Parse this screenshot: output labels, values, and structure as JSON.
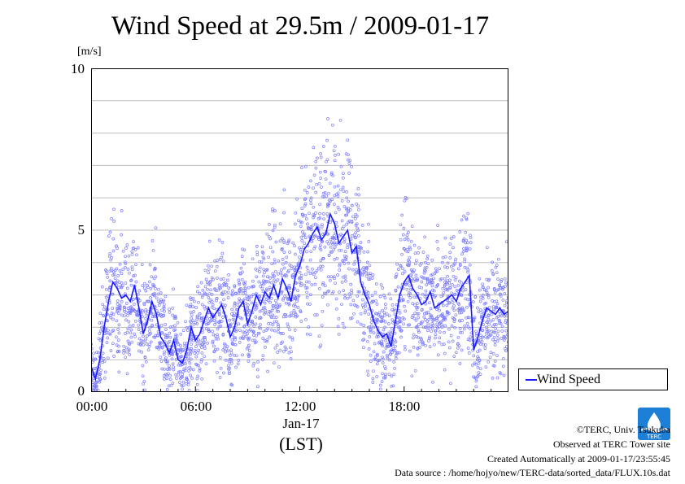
{
  "chart_data": {
    "type": "line",
    "title": "Wind Speed at 29.5m / 2009-01-17",
    "ylabel": "[m/s]",
    "xlabel": "(LST)",
    "x_date_label": "Jan-17",
    "ylim": [
      0,
      10
    ],
    "xlim_hours": [
      0,
      24
    ],
    "y_ticks": [
      "0",
      "5",
      "10"
    ],
    "x_ticks": [
      {
        "hour": 0,
        "label": "00:00"
      },
      {
        "hour": 6,
        "label": "06:00"
      },
      {
        "hour": 12,
        "label": "12:00"
      },
      {
        "hour": 18,
        "label": "18:00"
      }
    ],
    "grid": true,
    "legend_position": "bottom-right, outside plot",
    "series": [
      {
        "name": "Wind Speed",
        "color": "#1a1aff",
        "x_hours": [
          0.0,
          0.25,
          0.5,
          0.75,
          1.0,
          1.25,
          1.5,
          1.75,
          2.0,
          2.25,
          2.5,
          2.75,
          3.0,
          3.25,
          3.5,
          3.75,
          4.0,
          4.25,
          4.5,
          4.75,
          5.0,
          5.25,
          5.5,
          5.75,
          6.0,
          6.25,
          6.5,
          6.75,
          7.0,
          7.25,
          7.5,
          7.75,
          8.0,
          8.25,
          8.5,
          8.75,
          9.0,
          9.25,
          9.5,
          9.75,
          10.0,
          10.25,
          10.5,
          10.75,
          11.0,
          11.25,
          11.5,
          11.75,
          12.0,
          12.25,
          12.5,
          12.75,
          13.0,
          13.25,
          13.5,
          13.75,
          14.0,
          14.25,
          14.5,
          14.75,
          15.0,
          15.25,
          15.5,
          15.75,
          16.0,
          16.25,
          16.5,
          16.75,
          17.0,
          17.25,
          17.5,
          17.75,
          18.0,
          18.25,
          18.5,
          18.75,
          19.0,
          19.25,
          19.5,
          19.75,
          20.0,
          20.25,
          20.5,
          20.75,
          21.0,
          21.25,
          21.5,
          21.75,
          22.0,
          22.25,
          22.5,
          22.75,
          23.0,
          23.25,
          23.5,
          23.75,
          24.0
        ],
        "values": [
          0.8,
          0.4,
          1.0,
          2.0,
          2.8,
          3.4,
          3.2,
          2.9,
          3.0,
          2.8,
          3.3,
          2.6,
          1.8,
          2.2,
          2.8,
          2.4,
          1.7,
          1.5,
          1.2,
          1.6,
          1.0,
          0.9,
          1.3,
          2.0,
          1.6,
          1.8,
          2.2,
          2.6,
          2.3,
          2.5,
          2.7,
          2.3,
          1.7,
          2.0,
          2.6,
          2.8,
          2.1,
          2.5,
          3.0,
          2.7,
          3.1,
          2.9,
          3.3,
          2.9,
          3.5,
          3.2,
          2.8,
          3.6,
          3.9,
          4.4,
          4.6,
          4.9,
          5.1,
          4.7,
          4.9,
          5.5,
          5.2,
          4.6,
          4.8,
          5.0,
          4.3,
          4.5,
          3.4,
          3.0,
          2.7,
          2.2,
          1.9,
          1.7,
          1.8,
          1.4,
          2.2,
          3.0,
          3.4,
          3.6,
          3.2,
          3.0,
          2.7,
          2.8,
          3.1,
          2.6,
          2.7,
          2.8,
          2.9,
          3.0,
          2.8,
          3.2,
          3.4,
          3.6,
          1.3,
          1.7,
          2.2,
          2.6,
          2.5,
          2.4,
          2.6,
          2.4,
          2.5
        ]
      }
    ]
  },
  "legend": {
    "label": "Wind Speed"
  },
  "credits": {
    "copyright": "©TERC, Univ. Tsukuba",
    "site": "Observed at TERC Tower site",
    "created": "Created Automatically at 2009-01-17/23:55:45",
    "source": "Data source : /home/hojyo/new/TERC-data/sorted_data/FLUX.10s.dat"
  },
  "logo": {
    "text": "TERC",
    "color": "#1e7fd6"
  }
}
